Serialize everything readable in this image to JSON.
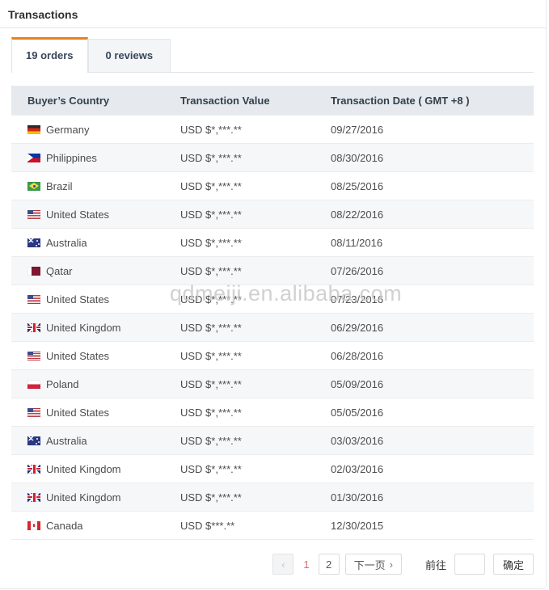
{
  "page": {
    "title": "Transactions",
    "watermark": "qdmeiji.en.alibaba.com"
  },
  "tabs": [
    {
      "label": "19 orders",
      "active": true
    },
    {
      "label": "0 reviews",
      "active": false
    }
  ],
  "table": {
    "columns": [
      "Buyer’s Country",
      "Transaction Value",
      "Transaction Date ( GMT +8 )"
    ],
    "rows": [
      {
        "flag": "de",
        "country": "Germany",
        "value": "USD $*,***.**",
        "date": "09/27/2016"
      },
      {
        "flag": "ph",
        "country": "Philippines",
        "value": "USD $*,***.**",
        "date": "08/30/2016"
      },
      {
        "flag": "br",
        "country": "Brazil",
        "value": "USD $*,***.**",
        "date": "08/25/2016"
      },
      {
        "flag": "us",
        "country": "United States",
        "value": "USD $*,***.**",
        "date": "08/22/2016"
      },
      {
        "flag": "au",
        "country": "Australia",
        "value": "USD $*,***.**",
        "date": "08/11/2016"
      },
      {
        "flag": "qa",
        "country": "Qatar",
        "value": "USD $*,***.**",
        "date": "07/26/2016"
      },
      {
        "flag": "us",
        "country": "United States",
        "value": "USD $*,***.**",
        "date": "07/23/2016"
      },
      {
        "flag": "gb",
        "country": "United Kingdom",
        "value": "USD $*,***.**",
        "date": "06/29/2016"
      },
      {
        "flag": "us",
        "country": "United States",
        "value": "USD $*,***.**",
        "date": "06/28/2016"
      },
      {
        "flag": "pl",
        "country": "Poland",
        "value": "USD $*,***.**",
        "date": "05/09/2016"
      },
      {
        "flag": "us",
        "country": "United States",
        "value": "USD $*,***.**",
        "date": "05/05/2016"
      },
      {
        "flag": "au",
        "country": "Australia",
        "value": "USD $*,***.**",
        "date": "03/03/2016"
      },
      {
        "flag": "gb",
        "country": "United Kingdom",
        "value": "USD $*,***.**",
        "date": "02/03/2016"
      },
      {
        "flag": "gb",
        "country": "United Kingdom",
        "value": "USD $*,***.**",
        "date": "01/30/2016"
      },
      {
        "flag": "ca",
        "country": "Canada",
        "value": "USD $***.**",
        "date": "12/30/2015"
      }
    ]
  },
  "pagination": {
    "prev_icon": "‹",
    "pages": [
      "1",
      "2"
    ],
    "current_page": "1",
    "next_label": "下一页",
    "next_icon": "›",
    "goto_label": "前往",
    "goto_value": "",
    "confirm_label": "确定"
  },
  "colors": {
    "accent_orange": "#e5821e",
    "active_page_text": "#e26666",
    "table_header_bg": "#e6eaee",
    "row_alt_bg": "#f6f7f9"
  }
}
